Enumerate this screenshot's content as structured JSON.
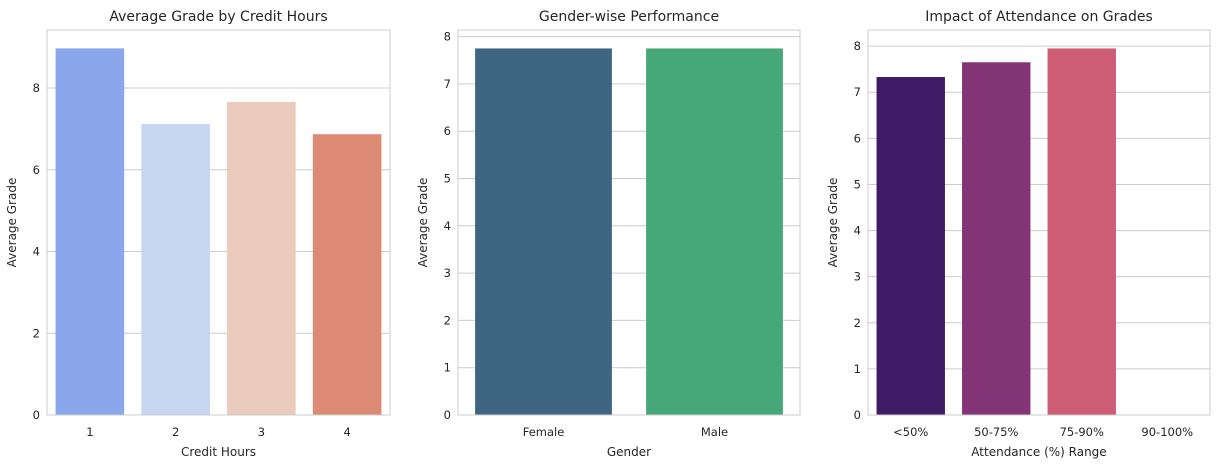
{
  "chart_data": [
    {
      "type": "bar",
      "title": "Average Grade by Credit Hours",
      "xlabel": "Credit Hours",
      "ylabel": "Average Grade",
      "categories": [
        "1",
        "2",
        "3",
        "4"
      ],
      "values": [
        8.97,
        7.12,
        7.66,
        6.87
      ],
      "colors": [
        "#8aa7eb",
        "#c7d6f0",
        "#eacbbd",
        "#dd8a74"
      ],
      "ylim": [
        0,
        9.42
      ],
      "yticks": [
        0,
        2,
        4,
        6,
        8
      ],
      "grid": true
    },
    {
      "type": "bar",
      "title": "Gender-wise Performance",
      "xlabel": "Gender",
      "ylabel": "Average Grade",
      "categories": [
        "Female",
        "Male"
      ],
      "values": [
        7.75,
        7.75
      ],
      "colors": [
        "#3e6682",
        "#46a878"
      ],
      "ylim": [
        0,
        8.14
      ],
      "yticks": [
        0,
        1,
        2,
        3,
        4,
        5,
        6,
        7,
        8
      ],
      "grid": true
    },
    {
      "type": "bar",
      "title": "Impact of Attendance on Grades",
      "xlabel": "Attendance (%) Range",
      "ylabel": "Average Grade",
      "categories": [
        "<50%",
        "50-75%",
        "75-90%",
        "90-100%"
      ],
      "values": [
        7.33,
        7.65,
        7.95,
        null
      ],
      "colors": [
        "#3e1b64",
        "#823476",
        "#cd5d74",
        "#f4a582"
      ],
      "ylim": [
        0,
        8.35
      ],
      "yticks": [
        0,
        1,
        2,
        3,
        4,
        5,
        6,
        7,
        8
      ],
      "grid": true
    }
  ]
}
